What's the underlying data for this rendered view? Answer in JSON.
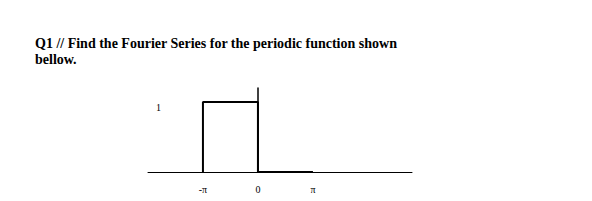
{
  "question": {
    "lines": [
      "Q1 // Find the Fourier Series for the periodic function shown",
      "bellow."
    ]
  },
  "chart_data": {
    "type": "line",
    "x": [
      -3.1416,
      -3.1416,
      0,
      0,
      3.1416
    ],
    "values": [
      0,
      1,
      1,
      0,
      0
    ],
    "color": "#000000",
    "xlim": [
      -6.28,
      8.8
    ],
    "xticks": [
      {
        "value": -3.1416,
        "label": "-π"
      },
      {
        "value": 0,
        "label": "0"
      },
      {
        "value": 3.1416,
        "label": "π"
      }
    ],
    "ylim": [
      0,
      1.2
    ],
    "yticks": [
      {
        "value": 1,
        "label": "1"
      }
    ],
    "grid": false
  }
}
